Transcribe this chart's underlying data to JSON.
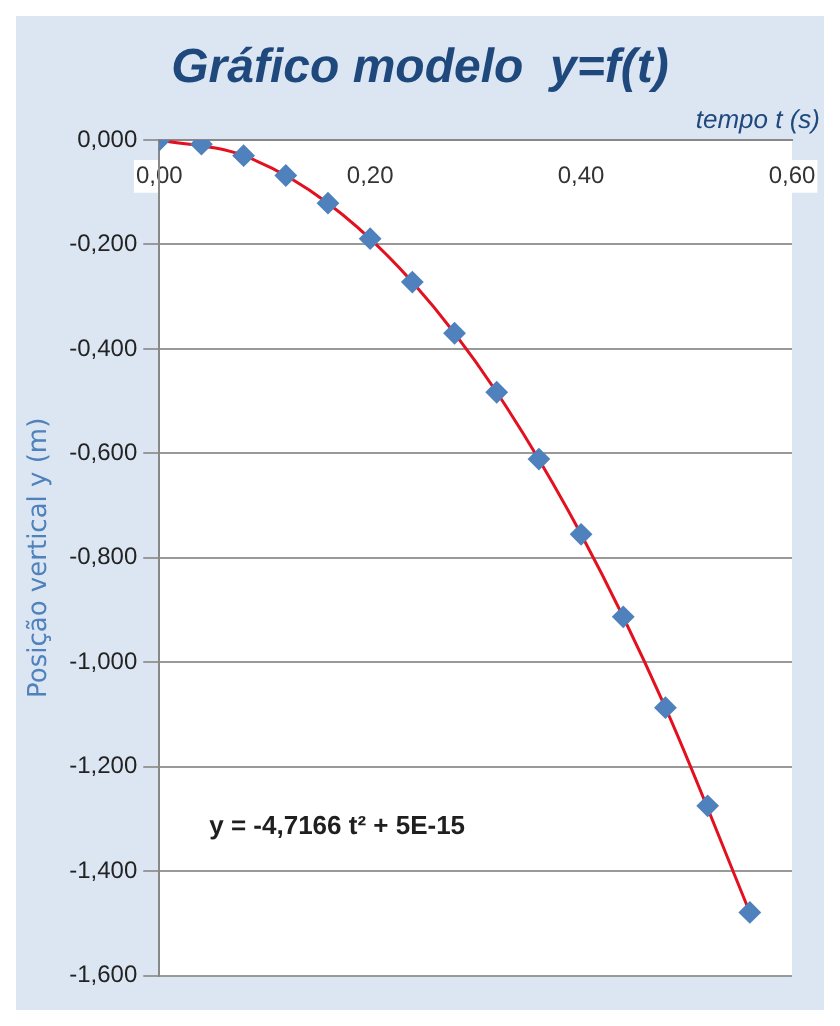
{
  "chart_data": {
    "type": "scatter",
    "title": "Gráfico modelo  y=f(t)",
    "xlabel": "tempo t (s)",
    "ylabel": "Posição vertical y (m)",
    "x": [
      0,
      0.04,
      0.08,
      0.12,
      0.16,
      0.2,
      0.24,
      0.28,
      0.32,
      0.36,
      0.4,
      0.44,
      0.48,
      0.52,
      0.56
    ],
    "series": [
      {
        "color": "#4f81bd",
        "marker": "diamond",
        "values": [
          0,
          -0.008,
          -0.03,
          -0.068,
          -0.121,
          -0.189,
          -0.272,
          -0.37,
          -0.483,
          -0.611,
          -0.755,
          -0.913,
          -1.087,
          -1.275,
          -1.479
        ]
      },
      {
        "type": "line",
        "color": "#e3101f",
        "marker": "none",
        "x": [
          0,
          0.08,
          0.16,
          0.24,
          0.32,
          0.4,
          0.48,
          0.56
        ],
        "values": [
          0,
          -0.03,
          -0.121,
          -0.272,
          -0.483,
          -0.755,
          -1.087,
          -1.479
        ]
      }
    ],
    "xlim": [
      0,
      0.6
    ],
    "xticks": [
      {
        "value": 0,
        "label": "0,00"
      },
      {
        "value": 0.2,
        "label": "0,20"
      },
      {
        "value": 0.4,
        "label": "0,40"
      },
      {
        "value": 0.6,
        "label": "0,60"
      }
    ],
    "ylim": [
      -1.6,
      0
    ],
    "yticks": [
      {
        "value": -1.6,
        "label": "-1,600"
      },
      {
        "value": -1.4,
        "label": "-1,400"
      },
      {
        "value": -1.2,
        "label": "-1,200"
      },
      {
        "value": -1,
        "label": "-1,000"
      },
      {
        "value": -0.8,
        "label": "-0,800"
      },
      {
        "value": -0.6,
        "label": "-0,600"
      },
      {
        "value": -0.4,
        "label": "-0,400"
      },
      {
        "value": -0.2,
        "label": "-0,200"
      },
      {
        "value": 0,
        "label": "0,000"
      }
    ],
    "grid": "y",
    "legend": false,
    "annotations": [
      "y = -4,7166 t² + 5E-15"
    ]
  }
}
